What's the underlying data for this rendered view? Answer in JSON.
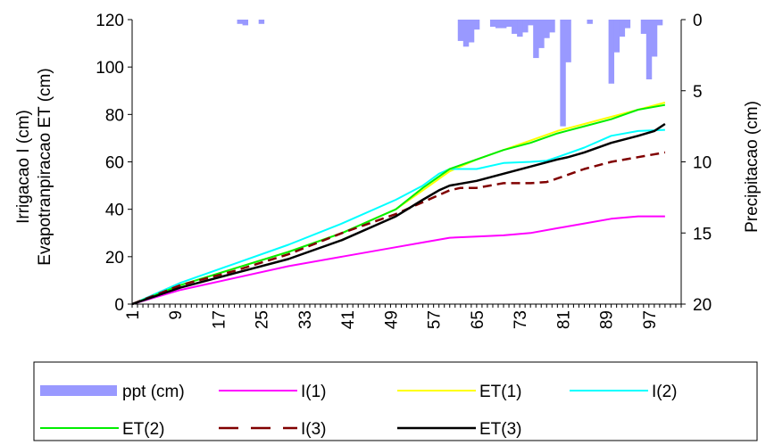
{
  "chart_data": {
    "type": "line",
    "title": "",
    "xlabel": "",
    "ylabel_left": [
      "Irrigacao I (cm)",
      "Evapotranpiracao ET (cm)"
    ],
    "ylabel_right": "Precipitacao (cm)",
    "x_range": [
      1,
      103
    ],
    "x_ticks": [
      "1",
      "9",
      "17",
      "25",
      "33",
      "41",
      "49",
      "57",
      "65",
      "73",
      "81",
      "89",
      "97"
    ],
    "y_left_range": [
      0,
      120
    ],
    "y_left_ticks": [
      "0",
      "20",
      "40",
      "60",
      "80",
      "100",
      "120"
    ],
    "y_right_range": [
      0,
      20
    ],
    "y_right_inverted": true,
    "y_right_ticks": [
      "0",
      "5",
      "10",
      "15",
      "20"
    ],
    "grid": false,
    "legend_position": "bottom",
    "precipitation": {
      "name": "ppt (cm)",
      "color": "#9999ff",
      "x": [
        21,
        22,
        25,
        62,
        63,
        64,
        65,
        68,
        69,
        70,
        71,
        72,
        73,
        74,
        75,
        76,
        77,
        78,
        79,
        81,
        82,
        86,
        90,
        91,
        92,
        93,
        96,
        97,
        98,
        99
      ],
      "values": [
        0.3,
        0.4,
        0.3,
        1.5,
        1.9,
        1.6,
        0.7,
        0.5,
        0.6,
        0.6,
        0.5,
        1.0,
        1.2,
        0.9,
        0.4,
        2.7,
        2.0,
        1.3,
        0.9,
        7.5,
        3.0,
        0.3,
        4.5,
        2.3,
        1.2,
        0.6,
        1.0,
        4.2,
        2.6,
        0.4
      ]
    },
    "series": [
      {
        "name": "I(1)",
        "color": "#ff00ff",
        "dash": "",
        "width": 2,
        "x": [
          1,
          10,
          20,
          30,
          40,
          50,
          55,
          60,
          65,
          70,
          75,
          80,
          85,
          90,
          95,
          100
        ],
        "values": [
          0,
          6,
          11,
          16,
          20,
          24,
          26,
          28,
          28.5,
          29,
          30,
          32,
          34,
          36,
          37,
          37
        ]
      },
      {
        "name": "ET(1)",
        "color": "#ffff00",
        "dash": "",
        "width": 2,
        "x": [
          1,
          10,
          20,
          30,
          40,
          50,
          55,
          60,
          65,
          70,
          75,
          80,
          85,
          90,
          95,
          100
        ],
        "values": [
          0,
          8,
          15,
          22,
          30,
          40,
          48,
          56,
          61,
          65,
          69,
          73,
          76,
          79,
          82,
          85
        ]
      },
      {
        "name": "I(2)",
        "color": "#00ffff",
        "dash": "",
        "width": 2,
        "x": [
          1,
          10,
          20,
          30,
          40,
          50,
          55,
          58,
          60,
          65,
          70,
          75,
          78,
          80,
          85,
          90,
          95,
          100
        ],
        "values": [
          0,
          9,
          17,
          25,
          34,
          44,
          50,
          55,
          57,
          57,
          59.5,
          60,
          60.5,
          62,
          66,
          71,
          73,
          73.5
        ]
      },
      {
        "name": "ET(2)",
        "color": "#00ee00",
        "dash": "",
        "width": 2,
        "x": [
          1,
          10,
          20,
          30,
          40,
          50,
          55,
          60,
          65,
          70,
          75,
          80,
          85,
          90,
          95,
          100
        ],
        "values": [
          0,
          8,
          15,
          22,
          30,
          40,
          49,
          57,
          61,
          65,
          68,
          72,
          75,
          78,
          82,
          84
        ]
      },
      {
        "name": "I(3)",
        "color": "#800000",
        "dash": "10 6",
        "width": 2.5,
        "x": [
          1,
          10,
          20,
          30,
          40,
          50,
          55,
          60,
          62,
          65,
          70,
          75,
          78,
          80,
          85,
          90,
          95,
          100
        ],
        "values": [
          0,
          8,
          14,
          21,
          30,
          38,
          43,
          48,
          49,
          49,
          51,
          51,
          51.5,
          53,
          57,
          60,
          62,
          64
        ]
      },
      {
        "name": "ET(3)",
        "color": "#000000",
        "dash": "",
        "width": 2.5,
        "x": [
          1,
          10,
          20,
          30,
          40,
          50,
          55,
          58,
          60,
          65,
          70,
          75,
          80,
          82,
          85,
          90,
          95,
          98,
          100
        ],
        "values": [
          0,
          7,
          13,
          19,
          27,
          37,
          44,
          48,
          50,
          52,
          55,
          58,
          61,
          62,
          64,
          68,
          71,
          73,
          76
        ]
      }
    ]
  }
}
